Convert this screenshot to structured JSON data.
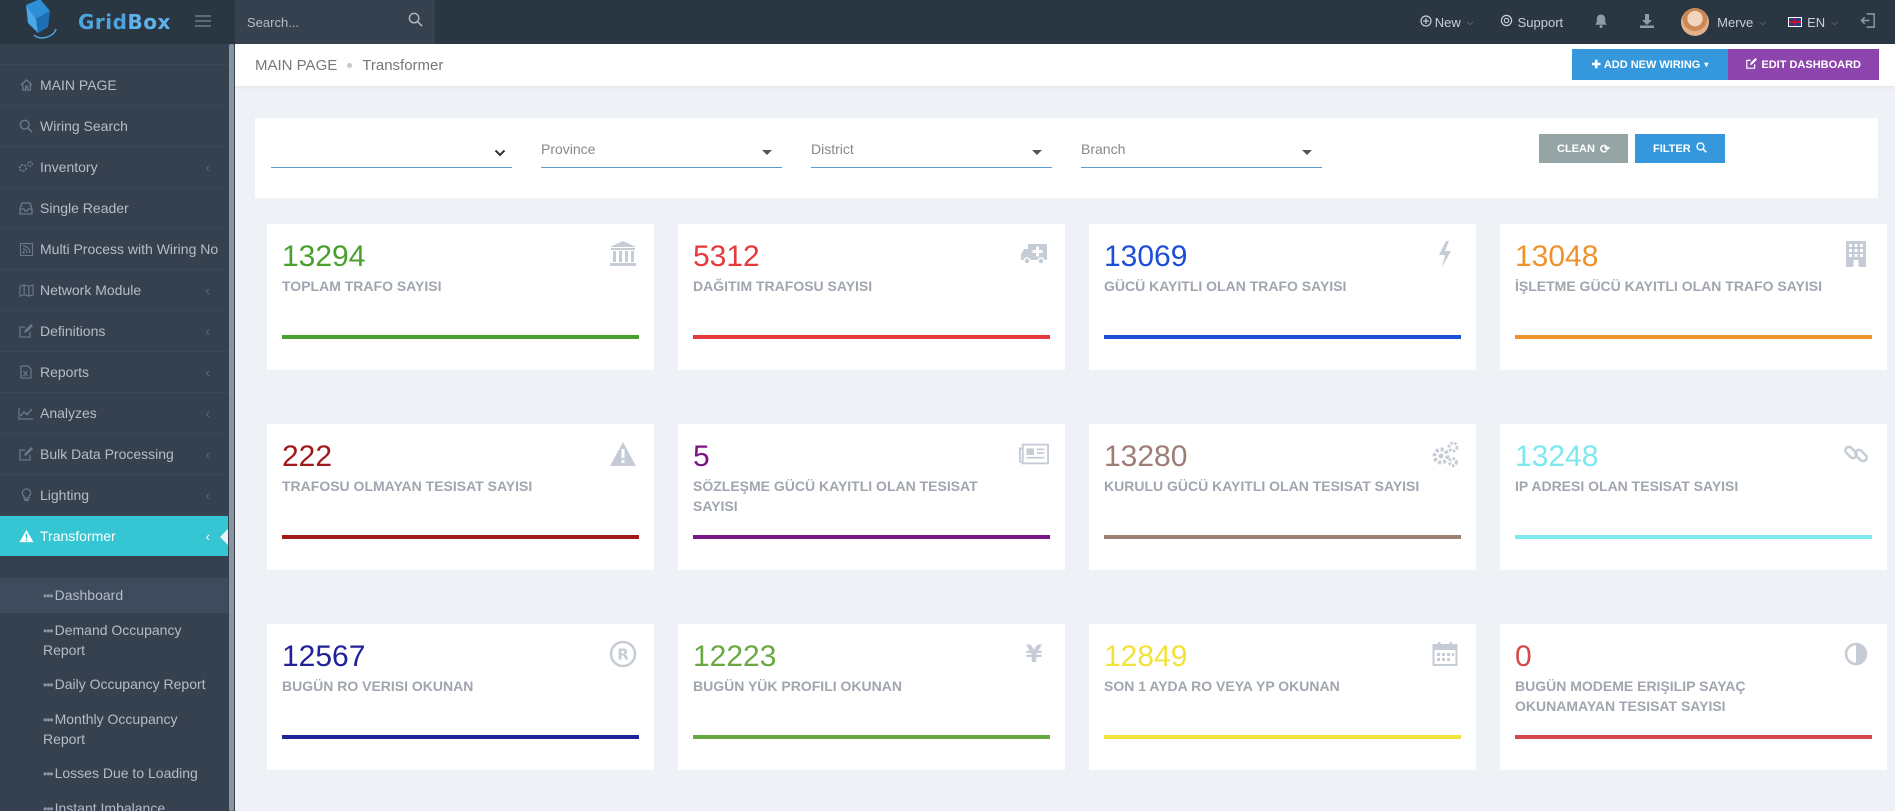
{
  "app": {
    "logo_text_a": "Grid",
    "logo_text_b": "Box"
  },
  "search": {
    "placeholder": "Search..."
  },
  "topbar": {
    "new_label": "New",
    "support_label": "Support",
    "user_name": "Merve",
    "language": "EN"
  },
  "sidebar": {
    "items": [
      {
        "label": "MAIN PAGE",
        "icon": "home-icon"
      },
      {
        "label": "Wiring Search",
        "icon": "search-icon"
      },
      {
        "label": "Inventory",
        "icon": "cogs-icon"
      },
      {
        "label": "Single Reader",
        "icon": "inbox-icon"
      },
      {
        "label": "Multi Process with Wiring No",
        "icon": "rss-icon"
      },
      {
        "label": "Network Module",
        "icon": "map-icon"
      },
      {
        "label": "Definitions",
        "icon": "edit-icon"
      },
      {
        "label": "Reports",
        "icon": "file-excel-icon"
      },
      {
        "label": "Analyzes",
        "icon": "line-chart-icon"
      },
      {
        "label": "Bulk Data Processing",
        "icon": "edit-icon"
      },
      {
        "label": "Lighting",
        "icon": "lightbulb-icon"
      },
      {
        "label": "Transformer",
        "icon": "warning-icon"
      }
    ],
    "sub_items": [
      {
        "label": "Dashboard"
      },
      {
        "label": "Demand Occupancy Report"
      },
      {
        "label": "Daily Occupancy Report"
      },
      {
        "label": "Monthly Occupancy Report"
      },
      {
        "label": "Losses Due to Loading"
      },
      {
        "label": "Instant Imbalance"
      }
    ]
  },
  "breadcrumb": {
    "home": "MAIN PAGE",
    "current": "Transformer"
  },
  "header_buttons": {
    "add_wiring": "ADD NEW WIRING",
    "edit_dashboard": "EDIT DASHBOARD"
  },
  "filters": {
    "first": "",
    "province": "Province",
    "district": "District",
    "branch": "Branch",
    "clean_label": "CLEAN",
    "filter_label": "FILTER"
  },
  "cards": [
    {
      "value": "13294",
      "label": "TOPLAM TRAFO SAYISI",
      "color": "#4aa02c",
      "icon": "bank-icon"
    },
    {
      "value": "5312",
      "label": "DAĞITIM TRAFOSU SAYISI",
      "color": "#e7393c",
      "icon": "ambulance-icon"
    },
    {
      "value": "13069",
      "label": "GÜCÜ KAYITLI OLAN TRAFO SAYISI",
      "color": "#1d4ed8",
      "icon": "bolt-icon"
    },
    {
      "value": "13048",
      "label": "İŞLETME GÜCÜ KAYITLI OLAN TRAFO SAYISI",
      "color": "#f0922c",
      "icon": "building-icon"
    },
    {
      "value": "222",
      "label": "TRAFOSU OLMAYAN TESISAT SAYISI",
      "color": "#a11a1a",
      "icon": "warning-icon"
    },
    {
      "value": "5",
      "label": "SÖZLEŞME GÜCÜ KAYITLI OLAN TESISAT SAYISI",
      "color": "#7b1485",
      "icon": "newspaper-icon"
    },
    {
      "value": "13280",
      "label": "KURULU GÜCÜ KAYITLI OLAN TESISAT SAYISI",
      "color": "#9e7d77",
      "icon": "gears-icon"
    },
    {
      "value": "13248",
      "label": "IP ADRESI OLAN TESISAT SAYISI",
      "color": "#7de8ef",
      "icon": "link-icon"
    },
    {
      "value": "12567",
      "label": "BUGÜN RO VERISI OKUNAN",
      "color": "#21229a",
      "icon": "registered-icon"
    },
    {
      "value": "12223",
      "label": "BUGÜN YÜK PROFILI OKUNAN",
      "color": "#6aa841",
      "icon": "yen-icon"
    },
    {
      "value": "12849",
      "label": "SON 1 AYDA RO VEYA YP OKUNAN",
      "color": "#f2e33a",
      "icon": "calendar-icon"
    },
    {
      "value": "0",
      "label": "BUGÜN MODEME ERIŞILIP SAYAÇ OKUNAMAYAN TESISAT SAYISI",
      "color": "#d44a4a",
      "icon": "adjust-icon"
    }
  ]
}
